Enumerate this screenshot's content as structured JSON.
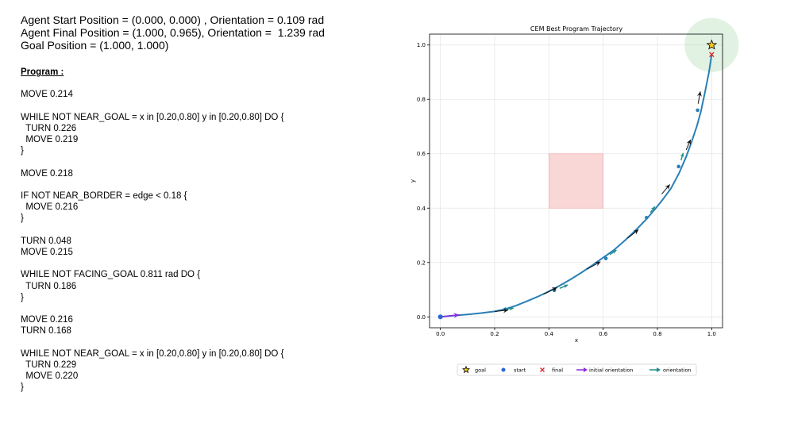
{
  "info": {
    "start": "Agent Start Position = (0.000, 0.000) , Orientation = 0.109 rad",
    "final": "Agent Final Position = (1.000, 0.965), Orientation =  1.239 rad",
    "goal": "Goal Position = (1.000, 1.000)"
  },
  "program": {
    "heading": "Program :",
    "lines": [
      "MOVE 0.214",
      "",
      "WHILE NOT NEAR_GOAL = x in [0.20,0.80] y in [0.20,0.80] DO {",
      "  TURN 0.226",
      "  MOVE 0.219",
      "}",
      "",
      "MOVE 0.218",
      "",
      "IF NOT NEAR_BORDER = edge < 0.18 {",
      "  MOVE 0.216",
      "}",
      "",
      "TURN 0.048",
      "MOVE 0.215",
      "",
      "WHILE NOT FACING_GOAL 0.811 rad DO {",
      "  TURN 0.186",
      "}",
      "",
      "MOVE 0.216",
      "TURN 0.168",
      "",
      "WHILE NOT NEAR_GOAL = x in [0.20,0.80] y in [0.20,0.80] DO {",
      "  TURN 0.229",
      "  MOVE 0.220",
      "}"
    ]
  },
  "colors": {
    "trajectory": "#2a7fb6",
    "start": "#2c64d8",
    "final": "#d62728",
    "initial_orientation": "#8a2be2",
    "orientation": "#1f8a8a",
    "obstacle": "#f4a6a6",
    "goal_region": "#a8dbb0",
    "arrow": "#111111"
  },
  "chart_data": {
    "type": "line",
    "title": "CEM Best Program Trajectory",
    "xlabel": "x",
    "ylabel": "y",
    "xlim": [
      -0.04,
      1.04
    ],
    "ylim": [
      -0.04,
      1.04
    ],
    "xticks": [
      0.0,
      0.2,
      0.4,
      0.6,
      0.8,
      1.0
    ],
    "yticks": [
      0.0,
      0.2,
      0.4,
      0.6,
      0.8,
      1.0
    ],
    "grid": true,
    "trajectory": {
      "x": [
        0.0,
        0.05,
        0.1,
        0.15,
        0.2,
        0.24,
        0.28,
        0.32,
        0.36,
        0.4,
        0.44,
        0.48,
        0.52,
        0.56,
        0.6,
        0.64,
        0.68,
        0.72,
        0.76,
        0.79,
        0.82,
        0.85,
        0.88,
        0.905,
        0.925,
        0.945,
        0.96,
        0.975,
        0.99,
        1.0
      ],
      "y": [
        0.0,
        0.005,
        0.009,
        0.014,
        0.02,
        0.029,
        0.042,
        0.058,
        0.075,
        0.094,
        0.115,
        0.138,
        0.163,
        0.19,
        0.218,
        0.246,
        0.281,
        0.319,
        0.36,
        0.395,
        0.432,
        0.473,
        0.529,
        0.587,
        0.641,
        0.7,
        0.755,
        0.825,
        0.9,
        0.965
      ]
    },
    "waypoints": [
      {
        "x": 0.24,
        "y": 0.028
      },
      {
        "x": 0.42,
        "y": 0.098
      },
      {
        "x": 0.61,
        "y": 0.215
      },
      {
        "x": 0.76,
        "y": 0.365
      },
      {
        "x": 0.878,
        "y": 0.553
      },
      {
        "x": 0.948,
        "y": 0.76
      }
    ],
    "heading_arrows": [
      {
        "x": 0.2,
        "y": 0.02,
        "dx": 0.05,
        "dy": 0.005
      },
      {
        "x": 0.38,
        "y": 0.083,
        "dx": 0.05,
        "dy": 0.025
      },
      {
        "x": 0.54,
        "y": 0.175,
        "dx": 0.05,
        "dy": 0.028
      },
      {
        "x": 0.69,
        "y": 0.289,
        "dx": 0.04,
        "dy": 0.032
      },
      {
        "x": 0.816,
        "y": 0.452,
        "dx": 0.03,
        "dy": 0.035
      },
      {
        "x": 0.906,
        "y": 0.614,
        "dx": 0.016,
        "dy": 0.038
      },
      {
        "x": 0.95,
        "y": 0.784,
        "dx": 0.008,
        "dy": 0.045
      }
    ],
    "orientation_arrows": [
      {
        "x": 0.24,
        "y": 0.028,
        "dx": 0.03,
        "dy": 0.004
      },
      {
        "x": 0.44,
        "y": 0.105,
        "dx": 0.03,
        "dy": 0.013
      },
      {
        "x": 0.625,
        "y": 0.229,
        "dx": 0.024,
        "dy": 0.017
      },
      {
        "x": 0.774,
        "y": 0.384,
        "dx": 0.017,
        "dy": 0.022
      },
      {
        "x": 0.887,
        "y": 0.576,
        "dx": 0.008,
        "dy": 0.027
      }
    ],
    "start": {
      "x": 0.0,
      "y": 0.0
    },
    "final": {
      "x": 1.0,
      "y": 0.965
    },
    "goal": {
      "x": 1.0,
      "y": 1.0,
      "radius": 0.1
    },
    "initial_orientation": {
      "x": 0.0,
      "y": 0.0,
      "angle": 0.109,
      "length": 0.07
    },
    "obstacle": {
      "x0": 0.4,
      "y0": 0.4,
      "x1": 0.6,
      "y1": 0.6
    },
    "legend": [
      "goal",
      "start",
      "final",
      "initial orientation",
      "orientation"
    ],
    "legend_position": "bottom-center"
  }
}
